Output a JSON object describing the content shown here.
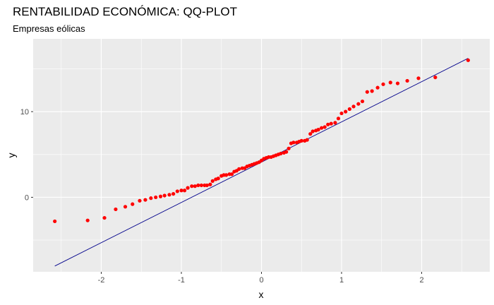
{
  "chart_data": {
    "type": "scatter",
    "title": "RENTABILIDAD ECONÓMICA: QQ-PLOT",
    "subtitle": "Empresas eólicas",
    "xlabel": "x",
    "ylabel": "y",
    "xlim": [
      -2.85,
      2.85
    ],
    "ylim": [
      -8.7,
      18.5
    ],
    "x_ticks": [
      -2,
      -1,
      0,
      1,
      2
    ],
    "y_ticks": [
      0,
      10
    ],
    "grid": true,
    "background_color": "#ebebeb",
    "point_color": "#ff0000",
    "line_color": "#00008b",
    "reference_line": {
      "slope": 4.7,
      "intercept": 4.1
    },
    "points": [
      [
        -2.58,
        -2.8
      ],
      [
        -2.17,
        -2.7
      ],
      [
        -1.96,
        -2.4
      ],
      [
        -1.82,
        -1.4
      ],
      [
        -1.7,
        -1.1
      ],
      [
        -1.61,
        -0.8
      ],
      [
        -1.52,
        -0.4
      ],
      [
        -1.45,
        -0.3
      ],
      [
        -1.38,
        -0.1
      ],
      [
        -1.32,
        0.0
      ],
      [
        -1.26,
        0.1
      ],
      [
        -1.21,
        0.2
      ],
      [
        -1.15,
        0.3
      ],
      [
        -1.1,
        0.4
      ],
      [
        -1.05,
        0.7
      ],
      [
        -1.0,
        0.8
      ],
      [
        -0.96,
        0.8
      ],
      [
        -0.92,
        1.1
      ],
      [
        -0.87,
        1.3
      ],
      [
        -0.83,
        1.3
      ],
      [
        -0.79,
        1.4
      ],
      [
        -0.75,
        1.4
      ],
      [
        -0.71,
        1.4
      ],
      [
        -0.68,
        1.4
      ],
      [
        -0.64,
        1.5
      ],
      [
        -0.61,
        1.9
      ],
      [
        -0.57,
        2.1
      ],
      [
        -0.54,
        2.2
      ],
      [
        -0.5,
        2.5
      ],
      [
        -0.47,
        2.6
      ],
      [
        -0.44,
        2.6
      ],
      [
        -0.4,
        2.7
      ],
      [
        -0.37,
        2.7
      ],
      [
        -0.34,
        3.0
      ],
      [
        -0.31,
        3.1
      ],
      [
        -0.28,
        3.3
      ],
      [
        -0.24,
        3.4
      ],
      [
        -0.21,
        3.4
      ],
      [
        -0.18,
        3.6
      ],
      [
        -0.15,
        3.7
      ],
      [
        -0.12,
        3.8
      ],
      [
        -0.09,
        3.9
      ],
      [
        -0.06,
        4.0
      ],
      [
        -0.03,
        4.1
      ],
      [
        0.0,
        4.3
      ],
      [
        0.03,
        4.5
      ],
      [
        0.06,
        4.6
      ],
      [
        0.09,
        4.7
      ],
      [
        0.12,
        4.7
      ],
      [
        0.15,
        4.8
      ],
      [
        0.18,
        4.9
      ],
      [
        0.21,
        5.0
      ],
      [
        0.24,
        5.1
      ],
      [
        0.28,
        5.2
      ],
      [
        0.31,
        5.3
      ],
      [
        0.34,
        5.7
      ],
      [
        0.37,
        6.3
      ],
      [
        0.4,
        6.4
      ],
      [
        0.44,
        6.4
      ],
      [
        0.47,
        6.5
      ],
      [
        0.5,
        6.6
      ],
      [
        0.54,
        6.6
      ],
      [
        0.57,
        6.7
      ],
      [
        0.61,
        7.4
      ],
      [
        0.64,
        7.7
      ],
      [
        0.68,
        7.8
      ],
      [
        0.71,
        7.9
      ],
      [
        0.75,
        8.1
      ],
      [
        0.79,
        8.2
      ],
      [
        0.83,
        8.5
      ],
      [
        0.87,
        8.6
      ],
      [
        0.92,
        8.7
      ],
      [
        0.96,
        9.2
      ],
      [
        1.0,
        9.8
      ],
      [
        1.05,
        10.0
      ],
      [
        1.1,
        10.3
      ],
      [
        1.15,
        10.6
      ],
      [
        1.21,
        10.9
      ],
      [
        1.26,
        11.2
      ],
      [
        1.32,
        12.3
      ],
      [
        1.38,
        12.4
      ],
      [
        1.45,
        12.8
      ],
      [
        1.52,
        13.2
      ],
      [
        1.61,
        13.4
      ],
      [
        1.7,
        13.3
      ],
      [
        1.82,
        13.6
      ],
      [
        1.96,
        13.9
      ],
      [
        2.17,
        14.0
      ],
      [
        2.58,
        16.0
      ]
    ]
  }
}
